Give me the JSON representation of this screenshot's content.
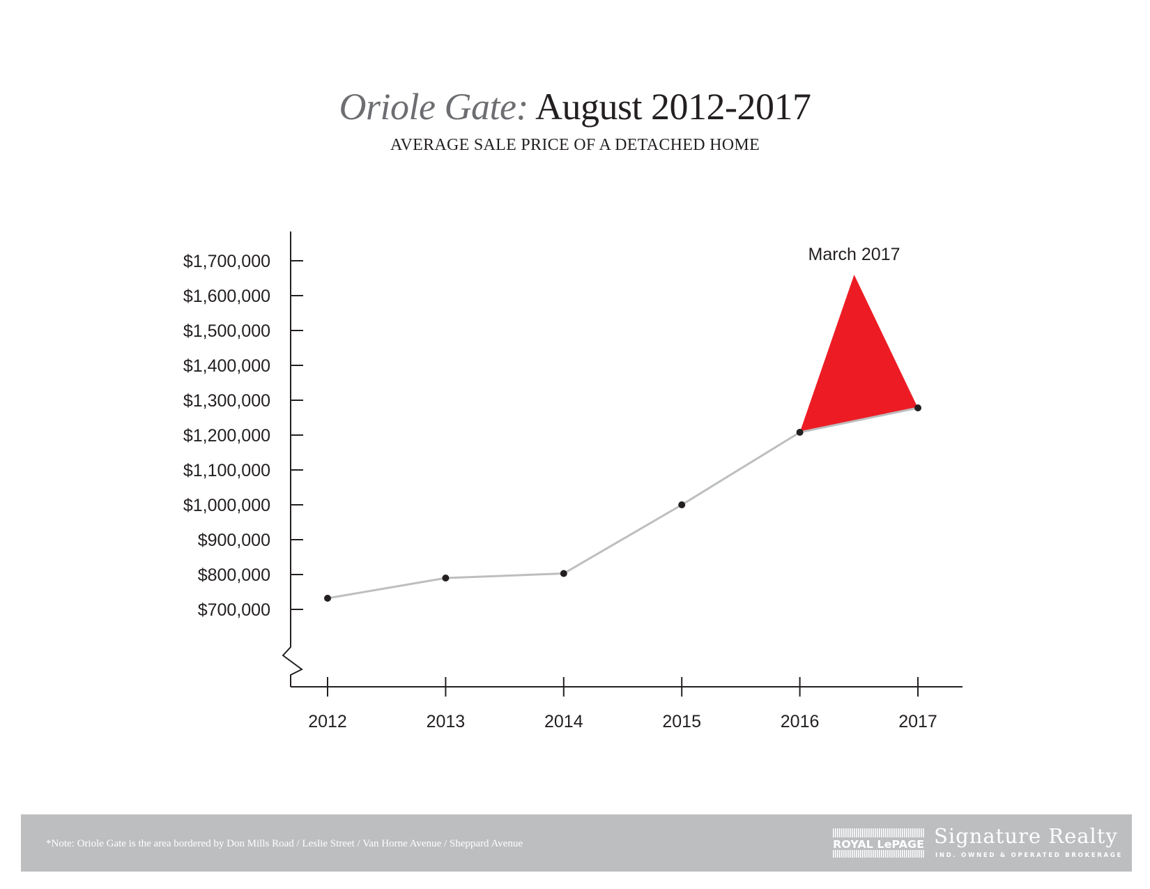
{
  "header": {
    "title_place": "Oriole Gate:",
    "title_period": " August 2012-2017",
    "subtitle": "AVERAGE SALE PRICE OF A DETACHED HOME"
  },
  "chart_data": {
    "type": "line",
    "x": [
      "2012",
      "2013",
      "2014",
      "2015",
      "2016",
      "2017"
    ],
    "series": [
      {
        "values": [
          732000,
          790000,
          803000,
          1000000,
          1208000,
          1278000
        ]
      }
    ],
    "y_ticks": [
      700000,
      800000,
      900000,
      1000000,
      1100000,
      1200000,
      1300000,
      1400000,
      1500000,
      1600000,
      1700000
    ],
    "y_tick_labels": [
      "$700,000",
      "$800,000",
      "$900,000",
      "$1,000,000",
      "$1,100,000",
      "$1,200,000",
      "$1,300,000",
      "$1,400,000",
      "$1,500,000",
      "$1,600,000",
      "$1,700,000"
    ],
    "ylim": [
      500000,
      1790000
    ],
    "y_axis_break": true,
    "annotation": {
      "label": "March 2017",
      "x": 2016.46,
      "value": 1660000
    },
    "grid": false,
    "colors": {
      "line": "#bcbec0",
      "marker": "#231f20",
      "axis": "#231f20",
      "peak": "#ed1c24"
    }
  },
  "footer": {
    "note": "*Note: Oriole Gate is the area bordered by Don Mills Road / Leslie Street / Van Horne Avenue / Sheppard Avenue",
    "logo_text": "ROYAL LePAGE",
    "brand": "Signature Realty",
    "brand_sub": "IND. OWNED & OPERATED BROKERAGE"
  }
}
